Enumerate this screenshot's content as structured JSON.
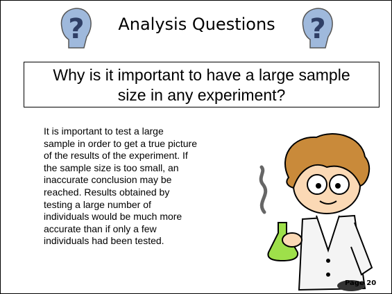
{
  "header": {
    "title": "Analysis Questions"
  },
  "question": {
    "lines": [
      "Why is it important to have a large sample",
      "size in any experiment?"
    ]
  },
  "answer": {
    "lines": [
      "It is important to test a large",
      "sample in order to get a true picture",
      "of the results of the experiment.  If",
      "the sample size is too small, an",
      "inaccurate conclusion may be",
      "reached.  Results obtained by",
      "testing a large number of",
      "individuals would be much more",
      "accurate than if only a few",
      "individuals had been tested."
    ]
  },
  "footer": {
    "page": "Page 20"
  }
}
